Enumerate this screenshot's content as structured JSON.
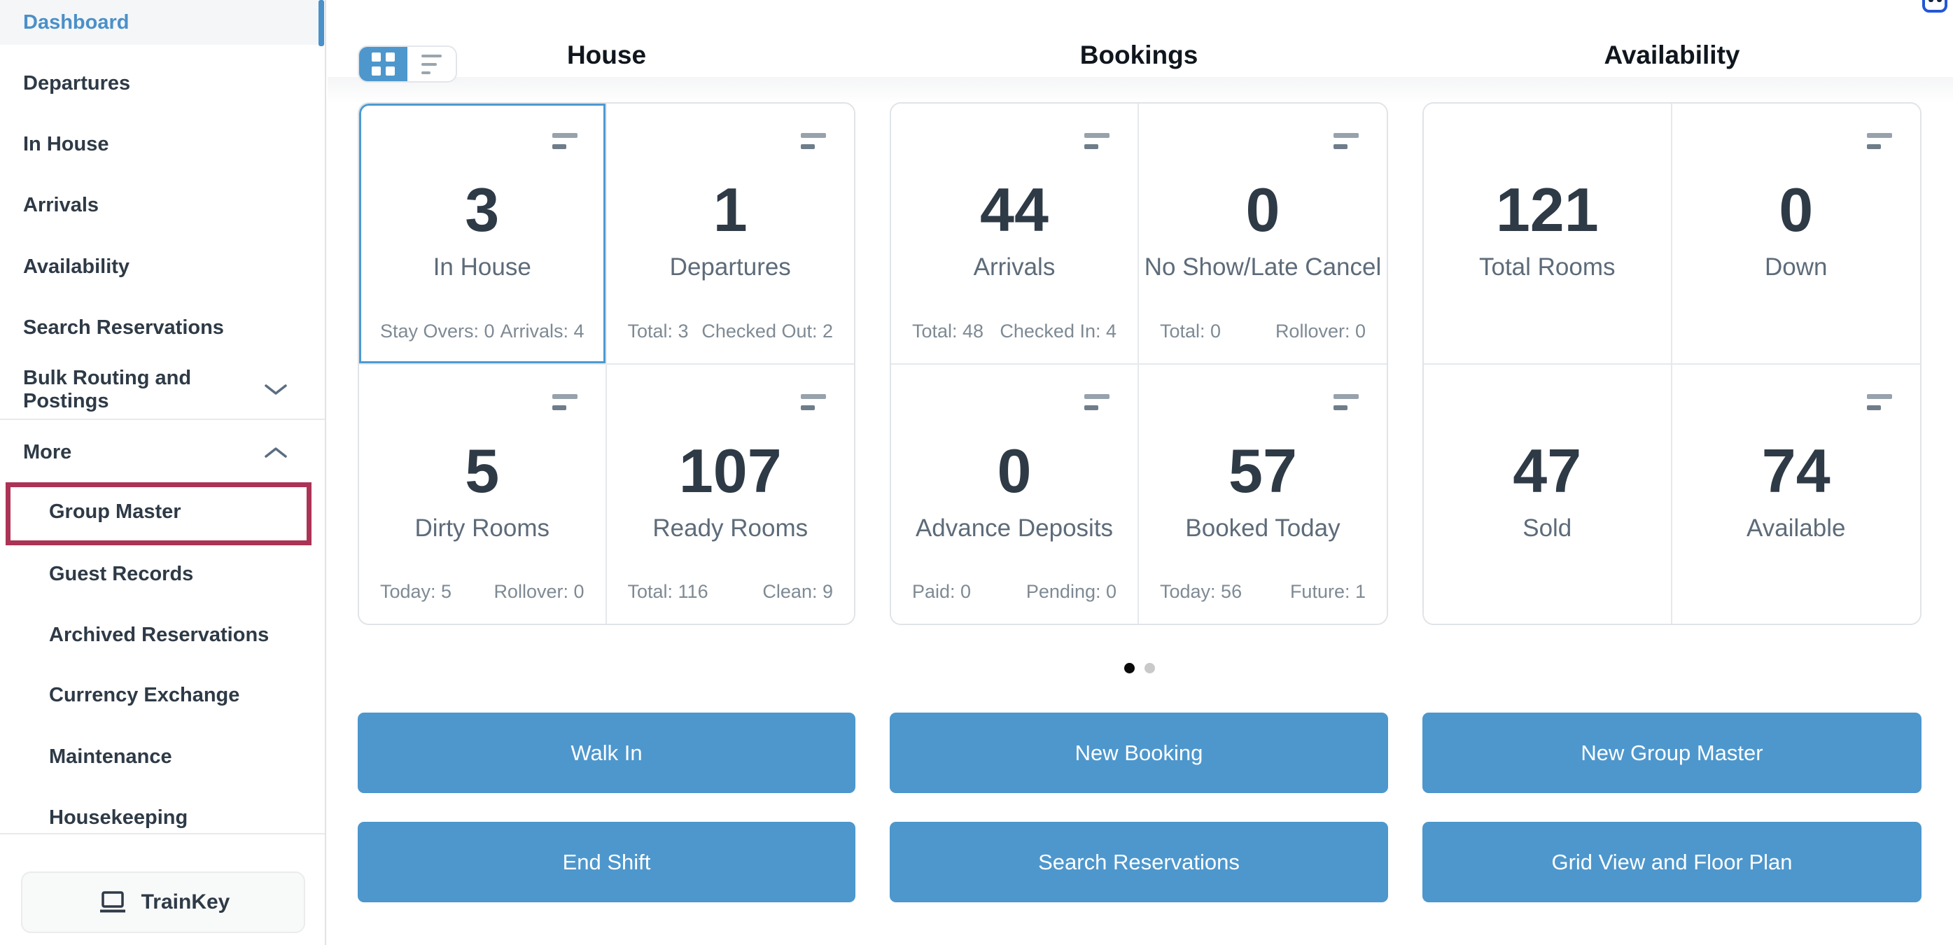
{
  "colors": {
    "accent_blue": "#4d97cd",
    "link_blue": "#4a90c9",
    "dark_text": "#2e3a46",
    "label_text": "#5d6b79",
    "stat_text": "#7e8a94",
    "annotation_red": "#ab3355",
    "dot_active": "#0a0a0a",
    "dot_inactive": "#c9c9c9",
    "pill_border_blue": "#2457d6"
  },
  "sidebar": {
    "items": [
      {
        "label": "Dashboard",
        "active": true
      },
      {
        "label": "Departures"
      },
      {
        "label": "In House"
      },
      {
        "label": "Arrivals"
      },
      {
        "label": "Availability"
      },
      {
        "label": "Search Reservations"
      },
      {
        "label": "Bulk Routing and Postings",
        "chevron": "down"
      },
      {
        "label": "More",
        "chevron": "up"
      },
      {
        "label": "Group Master",
        "sub": true,
        "highlighted": true
      },
      {
        "label": "Guest Records",
        "sub": true
      },
      {
        "label": "Archived Reservations",
        "sub": true
      },
      {
        "label": "Currency Exchange",
        "sub": true
      },
      {
        "label": "Maintenance",
        "sub": true
      },
      {
        "label": "Housekeeping",
        "sub": true
      }
    ],
    "trainkey": {
      "label": "TrainKey",
      "icon": "laptop-icon"
    }
  },
  "view_toggle": {
    "options": [
      {
        "name": "grid-view",
        "icon": "grid-icon",
        "selected": true
      },
      {
        "name": "list-view",
        "icon": "list-icon",
        "selected": false
      }
    ]
  },
  "sections": [
    {
      "title": "House",
      "cards": [
        {
          "value": "3",
          "label": "In House",
          "selected": true,
          "menu_icon": true,
          "stats": [
            "Stay Overs: 0",
            "Arrivals: 4"
          ]
        },
        {
          "value": "1",
          "label": "Departures",
          "menu_icon": true,
          "stats": [
            "Total: 3",
            "Checked Out: 2"
          ]
        },
        {
          "value": "5",
          "label": "Dirty Rooms",
          "menu_icon": true,
          "stats": [
            "Today: 5",
            "Rollover: 0"
          ]
        },
        {
          "value": "107",
          "label": "Ready Rooms",
          "menu_icon": true,
          "stats": [
            "Total: 116",
            "Clean: 9"
          ]
        }
      ]
    },
    {
      "title": "Bookings",
      "cards": [
        {
          "value": "44",
          "label": "Arrivals",
          "menu_icon": true,
          "stats": [
            "Total: 48",
            "Checked In: 4"
          ]
        },
        {
          "value": "0",
          "label": "No Show/Late Cancel",
          "menu_icon": true,
          "stats": [
            "Total: 0",
            "Rollover: 0"
          ]
        },
        {
          "value": "0",
          "label": "Advance Deposits",
          "menu_icon": true,
          "stats": [
            "Paid: 0",
            "Pending: 0"
          ]
        },
        {
          "value": "57",
          "label": "Booked Today",
          "menu_icon": true,
          "stats": [
            "Today: 56",
            "Future: 1"
          ]
        }
      ]
    },
    {
      "title": "Availability",
      "cards": [
        {
          "value": "121",
          "label": "Total Rooms",
          "menu_icon": false,
          "stats": []
        },
        {
          "value": "0",
          "label": "Down",
          "menu_icon": true,
          "stats": []
        },
        {
          "value": "47",
          "label": "Sold",
          "menu_icon": false,
          "stats": []
        },
        {
          "value": "74",
          "label": "Available",
          "menu_icon": true,
          "stats": []
        }
      ]
    }
  ],
  "pagination": {
    "dots": [
      {
        "state": "active"
      },
      {
        "state": "inactive"
      }
    ]
  },
  "actions": {
    "buttons": [
      "Walk In",
      "New Booking",
      "New Group Master",
      "End Shift",
      "Search Reservations",
      "Grid View and Floor Plan"
    ]
  }
}
